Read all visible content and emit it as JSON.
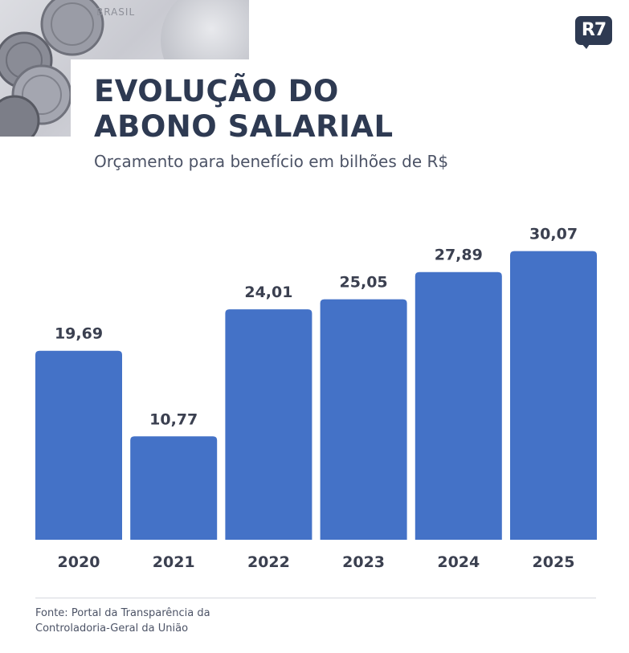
{
  "logo": {
    "text": "R7"
  },
  "decor": {
    "banknote_text": "BRASIL"
  },
  "header": {
    "title_line1": "EVOLUÇÃO DO",
    "title_line2": "ABONO SALARIAL",
    "subtitle": "Orçamento para benefício em bilhões de R$"
  },
  "chart_data": {
    "type": "bar",
    "categories": [
      "2020",
      "2021",
      "2022",
      "2023",
      "2024",
      "2025"
    ],
    "values": [
      19.69,
      10.77,
      24.01,
      25.05,
      27.89,
      30.07
    ],
    "value_labels": [
      "19,69",
      "10,77",
      "24,01",
      "25,05",
      "27,89",
      "30,07"
    ],
    "title": "EVOLUÇÃO DO ABONO SALARIAL",
    "subtitle": "Orçamento para benefício em bilhões de R$",
    "xlabel": "",
    "ylabel": "",
    "ylim": [
      0,
      33
    ],
    "grid": false,
    "legend": "none",
    "bar_color": "#4472c7"
  },
  "footer": {
    "source_line1": "Fonte: Portal da Transparência da",
    "source_line2": "Controladoria-Geral da União"
  },
  "colors": {
    "title": "#2e3a52",
    "text": "#3b4050",
    "bar": "#4472c7"
  }
}
